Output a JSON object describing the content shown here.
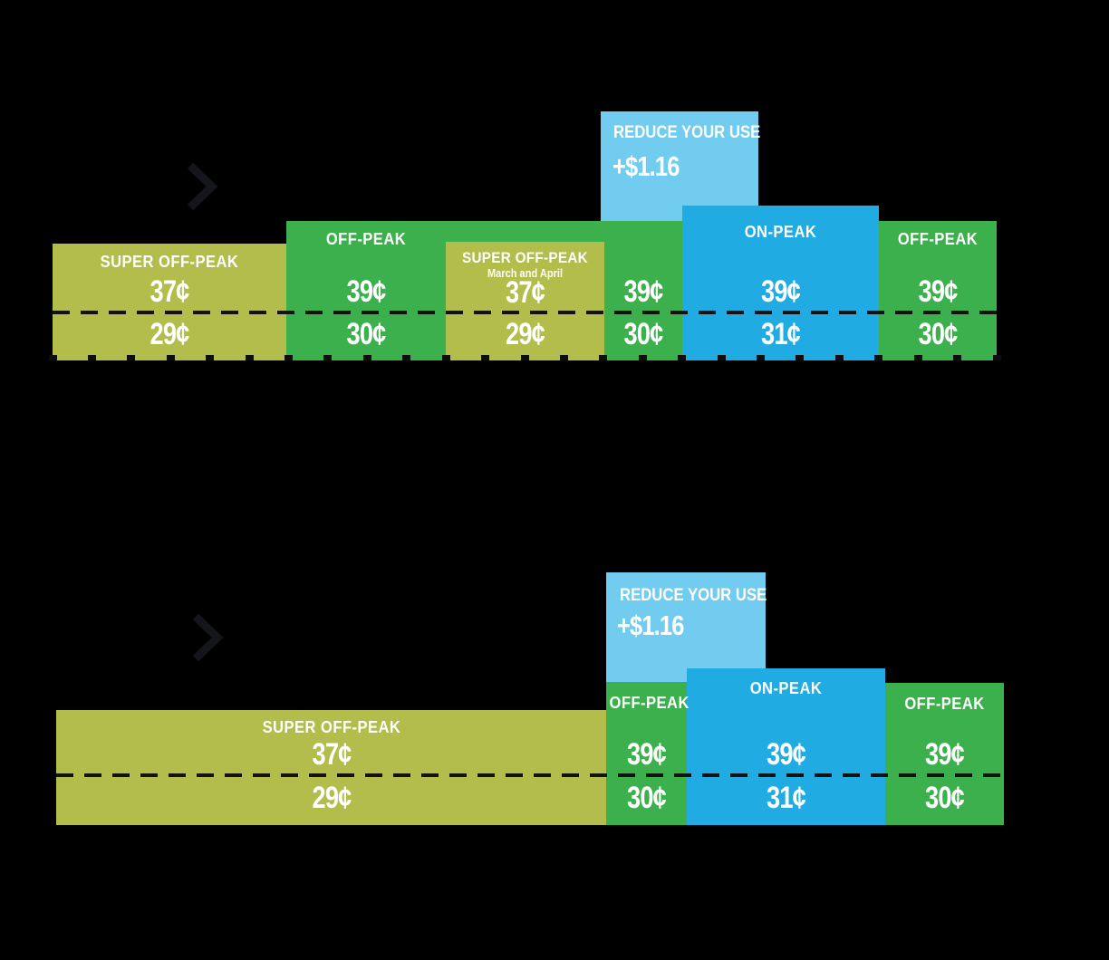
{
  "colors": {
    "olive": "#b2bd4b",
    "green": "#3cb04d",
    "blue": "#20abe2",
    "light_blue": "#72ccf0",
    "background": "#000000",
    "text": "#ffffff",
    "dash": "#121212"
  },
  "icons": {
    "chevron_right_top": "chevron-right",
    "chevron_right_bottom": "chevron-right"
  },
  "chart_data": [
    {
      "type": "bar",
      "title": "",
      "description": "Stacked time-of-use rate timeline, upper chart",
      "x_axis": {
        "tick_count": 25,
        "tick_labels_visible": false
      },
      "grid": false,
      "legend": false,
      "segments": [
        {
          "label": "SUPER OFF-PEAK",
          "sublabel": "",
          "rate_upper": "37¢",
          "rate_lower": "29¢",
          "color_key": "olive"
        },
        {
          "label": "OFF-PEAK",
          "sublabel": "",
          "rate_upper": "39¢",
          "rate_lower": "30¢",
          "color_key": "green"
        },
        {
          "label": "SUPER OFF-PEAK",
          "sublabel": "March and April",
          "rate_upper": "37¢",
          "rate_lower": "29¢",
          "color_key": "olive"
        },
        {
          "label": "",
          "sublabel": "",
          "rate_upper": "39¢",
          "rate_lower": "30¢",
          "color_key": "green"
        },
        {
          "label": "ON-PEAK",
          "sublabel": "",
          "rate_upper": "39¢",
          "rate_lower": "31¢",
          "color_key": "blue"
        },
        {
          "label": "OFF-PEAK",
          "sublabel": "",
          "rate_upper": "39¢",
          "rate_lower": "30¢",
          "color_key": "green"
        }
      ],
      "callout": {
        "title": "REDUCE YOUR USE",
        "value": "+$1.16",
        "color_key": "light_blue"
      }
    },
    {
      "type": "bar",
      "title": "",
      "description": "Stacked time-of-use rate timeline, lower chart",
      "grid": false,
      "legend": false,
      "segments": [
        {
          "label": "SUPER OFF-PEAK",
          "sublabel": "",
          "rate_upper": "37¢",
          "rate_lower": "29¢",
          "color_key": "olive"
        },
        {
          "label": "OFF-PEAK",
          "sublabel": "",
          "rate_upper": "39¢",
          "rate_lower": "30¢",
          "color_key": "green"
        },
        {
          "label": "ON-PEAK",
          "sublabel": "",
          "rate_upper": "39¢",
          "rate_lower": "31¢",
          "color_key": "blue"
        },
        {
          "label": "OFF-PEAK",
          "sublabel": "",
          "rate_upper": "39¢",
          "rate_lower": "30¢",
          "color_key": "green"
        }
      ],
      "callout": {
        "title": "REDUCE YOUR USE",
        "value": "+$1.16",
        "color_key": "light_blue"
      }
    }
  ]
}
